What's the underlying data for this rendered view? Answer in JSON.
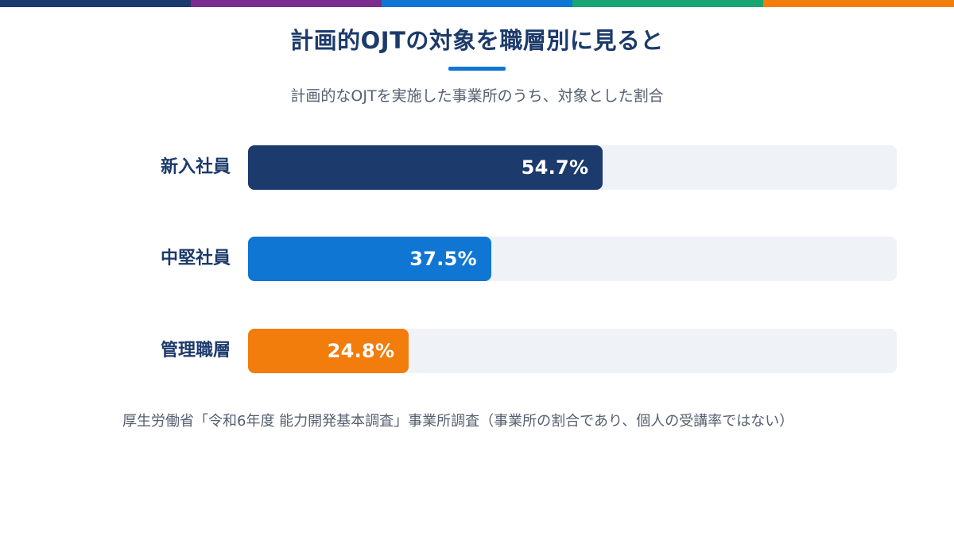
{
  "stripe_colors": [
    "#1c3a6b",
    "#7b2d8e",
    "#1076d4",
    "#17a673",
    "#f27c0c"
  ],
  "title": "計画的OJTの対象を職層別に見ると",
  "subtitle": "計画的なOJTを実施した事業所のうち、対象とした割合",
  "source": "厚生労働省「令和6年度 能力開発基本調査」事業所調査（事業所の割合であり、個人の受講率ではない）",
  "chart_data": {
    "type": "bar",
    "orientation": "horizontal",
    "categories": [
      "新入社員",
      "中堅社員",
      "管理職層"
    ],
    "values": [
      54.7,
      37.5,
      24.8
    ],
    "value_labels": [
      "54.7%",
      "37.5%",
      "24.8%"
    ],
    "unit": "%",
    "xlim": [
      0,
      100
    ],
    "colors": [
      "#1c3a6b",
      "#1076d4",
      "#f27c0c"
    ],
    "track_color": "#eff2f7",
    "grid": false,
    "legend": "none"
  }
}
